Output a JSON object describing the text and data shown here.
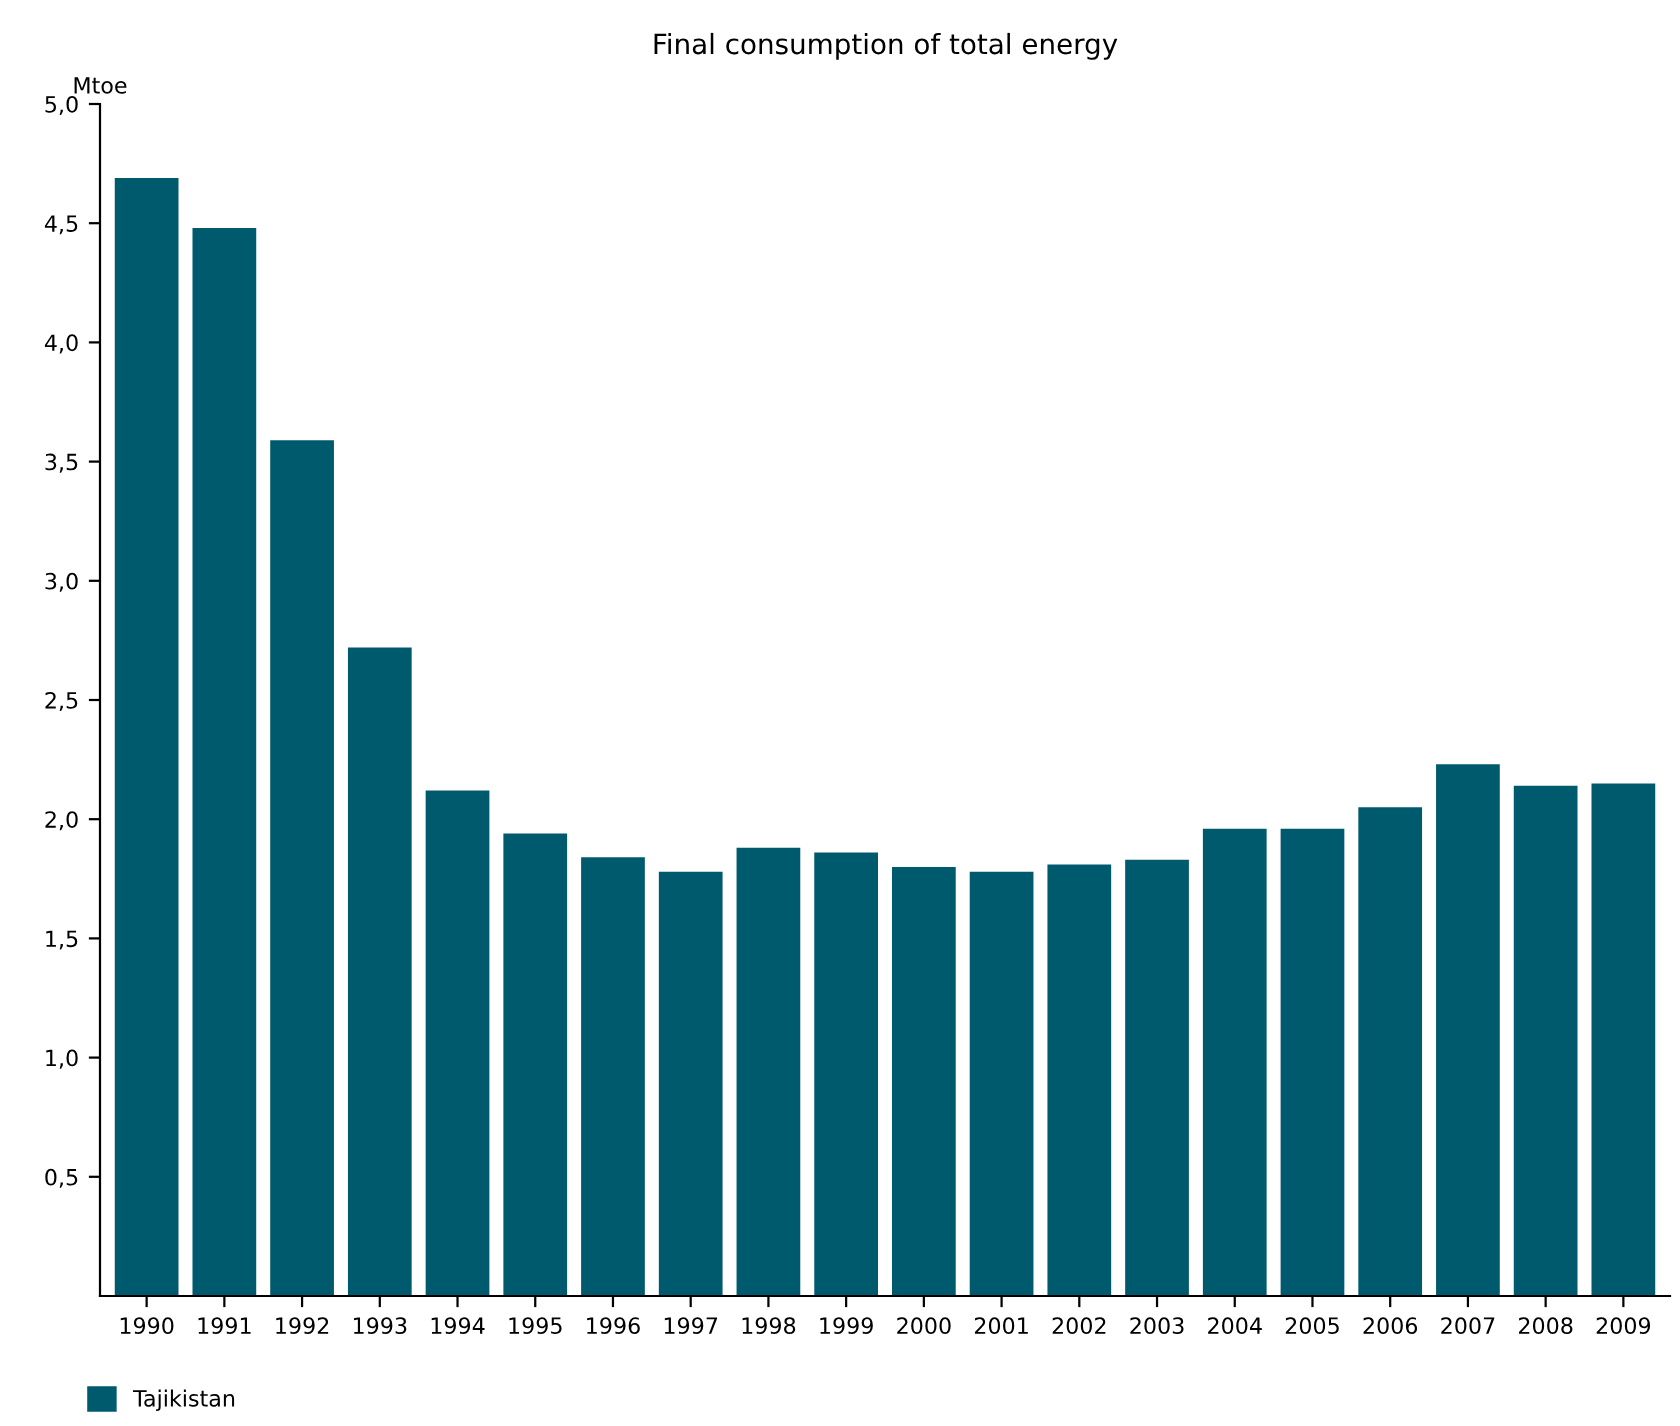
{
  "chart_data": {
    "type": "bar",
    "title": "Final consumption of total energy",
    "ylabel": "Mtoe",
    "categories": [
      "1990",
      "1991",
      "1992",
      "1993",
      "1994",
      "1995",
      "1996",
      "1997",
      "1998",
      "1999",
      "2000",
      "2001",
      "2002",
      "2003",
      "2004",
      "2005",
      "2006",
      "2007",
      "2008",
      "2009"
    ],
    "series": [
      {
        "name": "Tajikistan",
        "color": "#005a6e",
        "values": [
          4.69,
          4.48,
          3.59,
          2.72,
          2.12,
          1.94,
          1.84,
          1.78,
          1.88,
          1.86,
          1.8,
          1.78,
          1.81,
          1.83,
          1.96,
          1.96,
          2.05,
          2.23,
          2.14,
          2.15
        ]
      }
    ],
    "ylim": [
      0,
      5
    ],
    "yticks": [
      {
        "value": 0.5,
        "label": "0,5"
      },
      {
        "value": 1,
        "label": "1,0"
      },
      {
        "value": 1.5,
        "label": "1,5"
      },
      {
        "value": 2,
        "label": "2,0"
      },
      {
        "value": 2.5,
        "label": "2,5"
      },
      {
        "value": 3,
        "label": "3,0"
      },
      {
        "value": 3.5,
        "label": "3,5"
      },
      {
        "value": 4,
        "label": "4,0"
      },
      {
        "value": 4.5,
        "label": "4,5"
      },
      {
        "value": 5,
        "label": "5,0"
      }
    ],
    "grid": false,
    "legend": "bottom left"
  }
}
